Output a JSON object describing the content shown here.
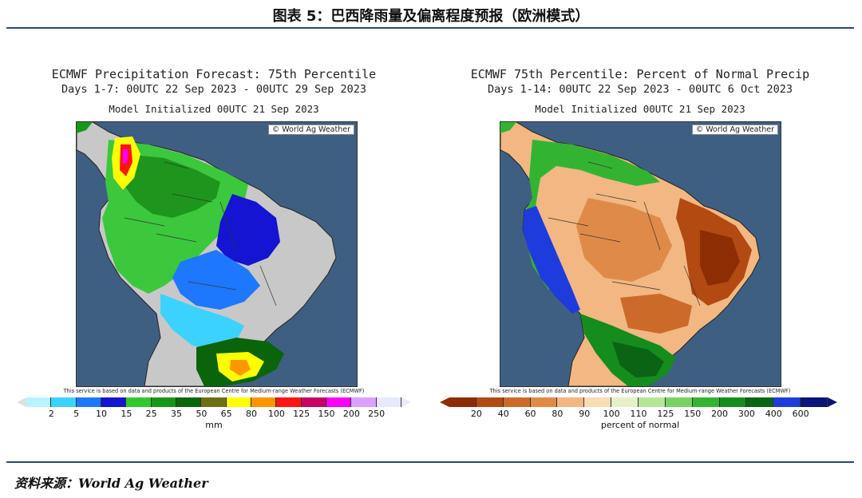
{
  "figure_title": "图表 5：巴西降雨量及偏离程度预报（欧洲模式）",
  "source_label": "资料来源：",
  "source_value": "World Ag Weather",
  "left_panel": {
    "title_line1": "ECMWF Precipitation Forecast: 75th Percentile",
    "title_line2": "Days 1-7: 00UTC 22 Sep 2023 - 00UTC 29 Sep 2023",
    "title_line3": "Model Initialized 00UTC 21 Sep 2023",
    "credit": "© World Ag Weather",
    "disclaimer": "This service is based on data and products of the European Centre for Medium-range Weather Forecasts (ECMWF)",
    "colorbar_ticks": [
      "2",
      "5",
      "10",
      "15",
      "25",
      "35",
      "50",
      "65",
      "80",
      "100",
      "125",
      "150",
      "200",
      "250"
    ],
    "colorbar_colors": [
      "#b8f4ff",
      "#3cd2ff",
      "#1e78ff",
      "#1414d2",
      "#32c832",
      "#189618",
      "#0a640a",
      "#6e6e14",
      "#ffff00",
      "#ff9600",
      "#ff1414",
      "#c80064",
      "#ff00ff",
      "#dca0ff",
      "#e8e8ff"
    ],
    "unit_label": "mm"
  },
  "right_panel": {
    "title_line1": "ECMWF 75th Percentile: Percent of Normal Precip",
    "title_line2": "Days 1-14: 00UTC 22 Sep 2023 - 00UTC 6 Oct 2023",
    "title_line3": "Model Initialized 00UTC 21 Sep 2023",
    "credit": "© World Ag Weather",
    "disclaimer": "This service is based on data and products of the European Centre for Medium-range Weather Forecasts (ECMWF)",
    "colorbar_ticks": [
      "20",
      "40",
      "60",
      "80",
      "90",
      "100",
      "110",
      "125",
      "150",
      "200",
      "300",
      "400",
      "600"
    ],
    "colorbar_colors": [
      "#8c2d04",
      "#b24a12",
      "#cc6a2a",
      "#e08a4a",
      "#f2b782",
      "#f8dcb4",
      "#e6f0c8",
      "#b4e696",
      "#78d264",
      "#32b432",
      "#148c1e",
      "#0a6414",
      "#1e3cdc",
      "#0a1478"
    ],
    "unit_label": "percent of normal"
  }
}
